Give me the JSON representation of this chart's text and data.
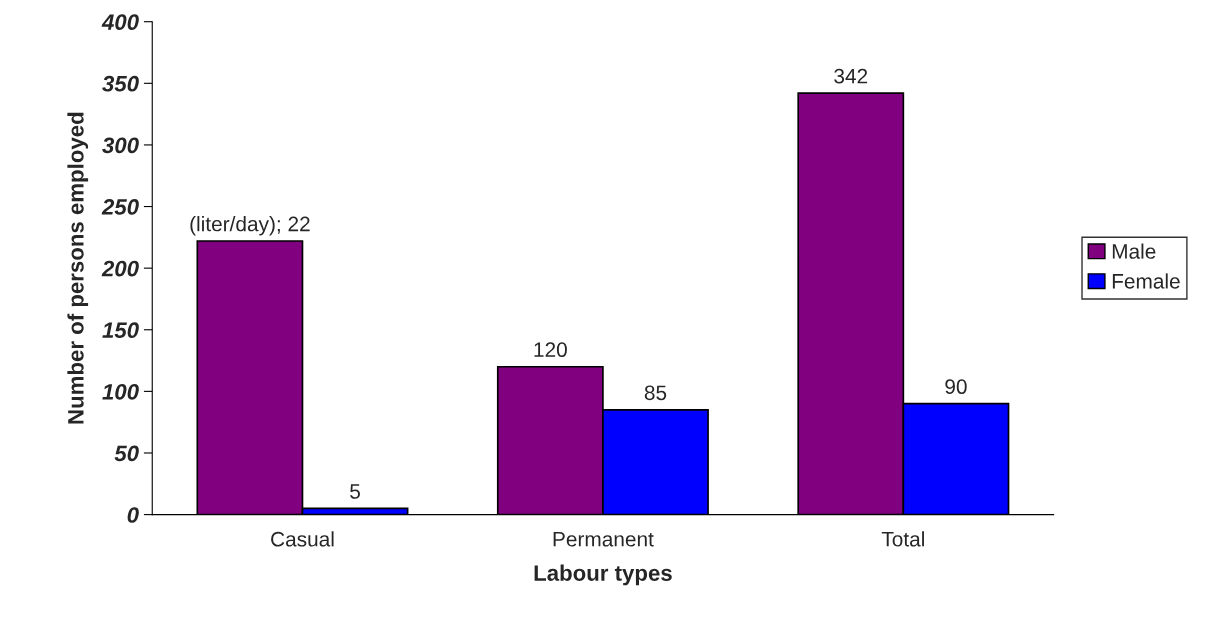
{
  "chart_data": {
    "type": "bar",
    "xlabel": "Labour types",
    "ylabel": "Number of persons employed",
    "categories": [
      "Casual",
      "Permanent",
      "Total"
    ],
    "series": [
      {
        "name": "Male",
        "color": "#800080",
        "values": [
          222,
          120,
          342
        ],
        "value_labels": [
          null,
          "120",
          "342"
        ]
      },
      {
        "name": "Female",
        "color": "#0000ff",
        "values": [
          5,
          85,
          90
        ],
        "value_labels": [
          "5",
          "85",
          "90"
        ]
      }
    ],
    "annotations": [
      {
        "text": "(liter/day); 22",
        "x": "Casual",
        "y": 222
      }
    ],
    "ylim": [
      0,
      400
    ],
    "yticks": [
      0,
      50,
      100,
      150,
      200,
      250,
      300,
      350,
      400
    ],
    "grid": false,
    "legend": "right"
  }
}
